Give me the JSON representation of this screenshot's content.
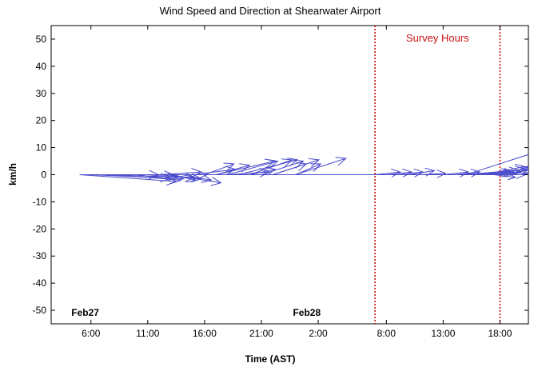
{
  "chart_data": {
    "type": "quiver",
    "title": "Wind Speed and Direction at Shearwater Airport",
    "xlabel": "Time (AST)",
    "ylabel": "km/h",
    "ylim": [
      -55,
      55
    ],
    "xlim": [
      "Feb27 02:30",
      "Feb28 20:30"
    ],
    "xticks": [
      "6:00",
      "11:00",
      "16:00",
      "21:00",
      "2:00",
      "8:00",
      "13:00",
      "18:00"
    ],
    "yticks": [
      -50,
      -40,
      -30,
      -20,
      -10,
      0,
      10,
      20,
      30,
      40,
      50
    ],
    "date_labels": [
      {
        "text": "Feb27",
        "time": "Feb27 05:30"
      },
      {
        "text": "Feb28",
        "time": "Feb28 01:00"
      }
    ],
    "survey": {
      "label": "Survey Hours",
      "start": "Feb28 07:00",
      "end": "Feb28 18:00",
      "color": "#cc1111"
    },
    "baseline": {
      "from": "Feb27 05:00",
      "to": "Feb28 20:30"
    },
    "arrow_color": "#4b4bcc",
    "arrows": [
      {
        "t": "Feb27 05:00",
        "u": 11.5,
        "v": -2.5
      },
      {
        "t": "Feb27 06:00",
        "u": 11,
        "v": -1.5
      },
      {
        "t": "Feb27 07:00",
        "u": 11,
        "v": -1
      },
      {
        "t": "Feb27 08:00",
        "u": 8,
        "v": -2
      },
      {
        "t": "Feb27 09:00",
        "u": 4,
        "v": 0
      },
      {
        "t": "Feb27 10:00",
        "u": 4,
        "v": -1.5
      },
      {
        "t": "Feb27 11:00",
        "u": 3,
        "v": 0
      },
      {
        "t": "Feb27 11:00",
        "u": 3.5,
        "v": -1
      },
      {
        "t": "Feb27 12:00",
        "u": 5,
        "v": 1
      },
      {
        "t": "Feb27 12:00",
        "u": 5,
        "v": -1.5
      },
      {
        "t": "Feb27 13:00",
        "u": 6,
        "v": -3
      },
      {
        "t": "Feb27 13:00",
        "u": 3,
        "v": -2
      },
      {
        "t": "Feb27 14:00",
        "u": 3.5,
        "v": -2
      },
      {
        "t": "Feb27 14:00",
        "u": 3,
        "v": 0
      },
      {
        "t": "Feb27 15:00",
        "u": 5,
        "v": 2
      },
      {
        "t": "Feb27 16:00",
        "u": 3.5,
        "v": 4
      },
      {
        "t": "Feb27 17:00",
        "u": 7,
        "v": 5
      },
      {
        "t": "Feb27 17:00",
        "u": 4,
        "v": 3.5
      },
      {
        "t": "Feb27 18:00",
        "u": 6,
        "v": 5
      },
      {
        "t": "Feb27 18:00",
        "u": 5,
        "v": 1
      },
      {
        "t": "Feb27 19:00",
        "u": 7,
        "v": 5.5
      },
      {
        "t": "Feb27 20:00",
        "u": 5,
        "v": 5.5
      },
      {
        "t": "Feb27 20:00",
        "u": 3,
        "v": 2
      },
      {
        "t": "Feb27 21:00",
        "u": 5,
        "v": 5
      },
      {
        "t": "Feb27 22:00",
        "u": 4,
        "v": 4
      },
      {
        "t": "Feb27 22:00",
        "u": 5.5,
        "v": 5.5
      },
      {
        "t": "Feb28 00:00",
        "u": 3,
        "v": 4
      },
      {
        "t": "Feb28 00:00",
        "u": 6,
        "v": 6
      },
      {
        "t": "Feb28 07:00",
        "u": 3,
        "v": 1
      },
      {
        "t": "Feb28 08:00",
        "u": 3,
        "v": 1
      },
      {
        "t": "Feb28 09:00",
        "u": 3,
        "v": 1
      },
      {
        "t": "Feb28 10:00",
        "u": 3,
        "v": 1.5
      },
      {
        "t": "Feb28 11:00",
        "u": 3,
        "v": 0.5
      },
      {
        "t": "Feb28 13:00",
        "u": 3,
        "v": 1
      },
      {
        "t": "Feb28 14:00",
        "u": 3,
        "v": 1
      },
      {
        "t": "Feb28 14:30",
        "u": 7,
        "v": 1.5
      },
      {
        "t": "Feb28 15:00",
        "u": 7,
        "v": 2
      },
      {
        "t": "Feb28 15:30",
        "u": 5,
        "v": 1
      },
      {
        "t": "Feb28 16:00",
        "u": 4,
        "v": 1
      },
      {
        "t": "Feb28 16:30",
        "u": 5,
        "v": 3
      },
      {
        "t": "Feb28 17:00",
        "u": 3,
        "v": 1
      },
      {
        "t": "Feb28 17:30",
        "u": 2.5,
        "v": -1
      },
      {
        "t": "Feb28 18:00",
        "u": 4,
        "v": 2
      },
      {
        "t": "Feb28 18:00",
        "u": 3,
        "v": 0
      },
      {
        "t": "Feb28 19:00",
        "u": 2,
        "v": 2
      },
      {
        "t": "Feb28 19:00",
        "u": 2,
        "v": 3
      },
      {
        "t": "Feb28 20:00",
        "u": 1,
        "v": 1
      },
      {
        "t": "Feb28 15:00",
        "u": 20,
        "v": 20
      },
      {
        "t": "Feb28 15:30",
        "u": 14,
        "v": 1.5
      }
    ]
  }
}
